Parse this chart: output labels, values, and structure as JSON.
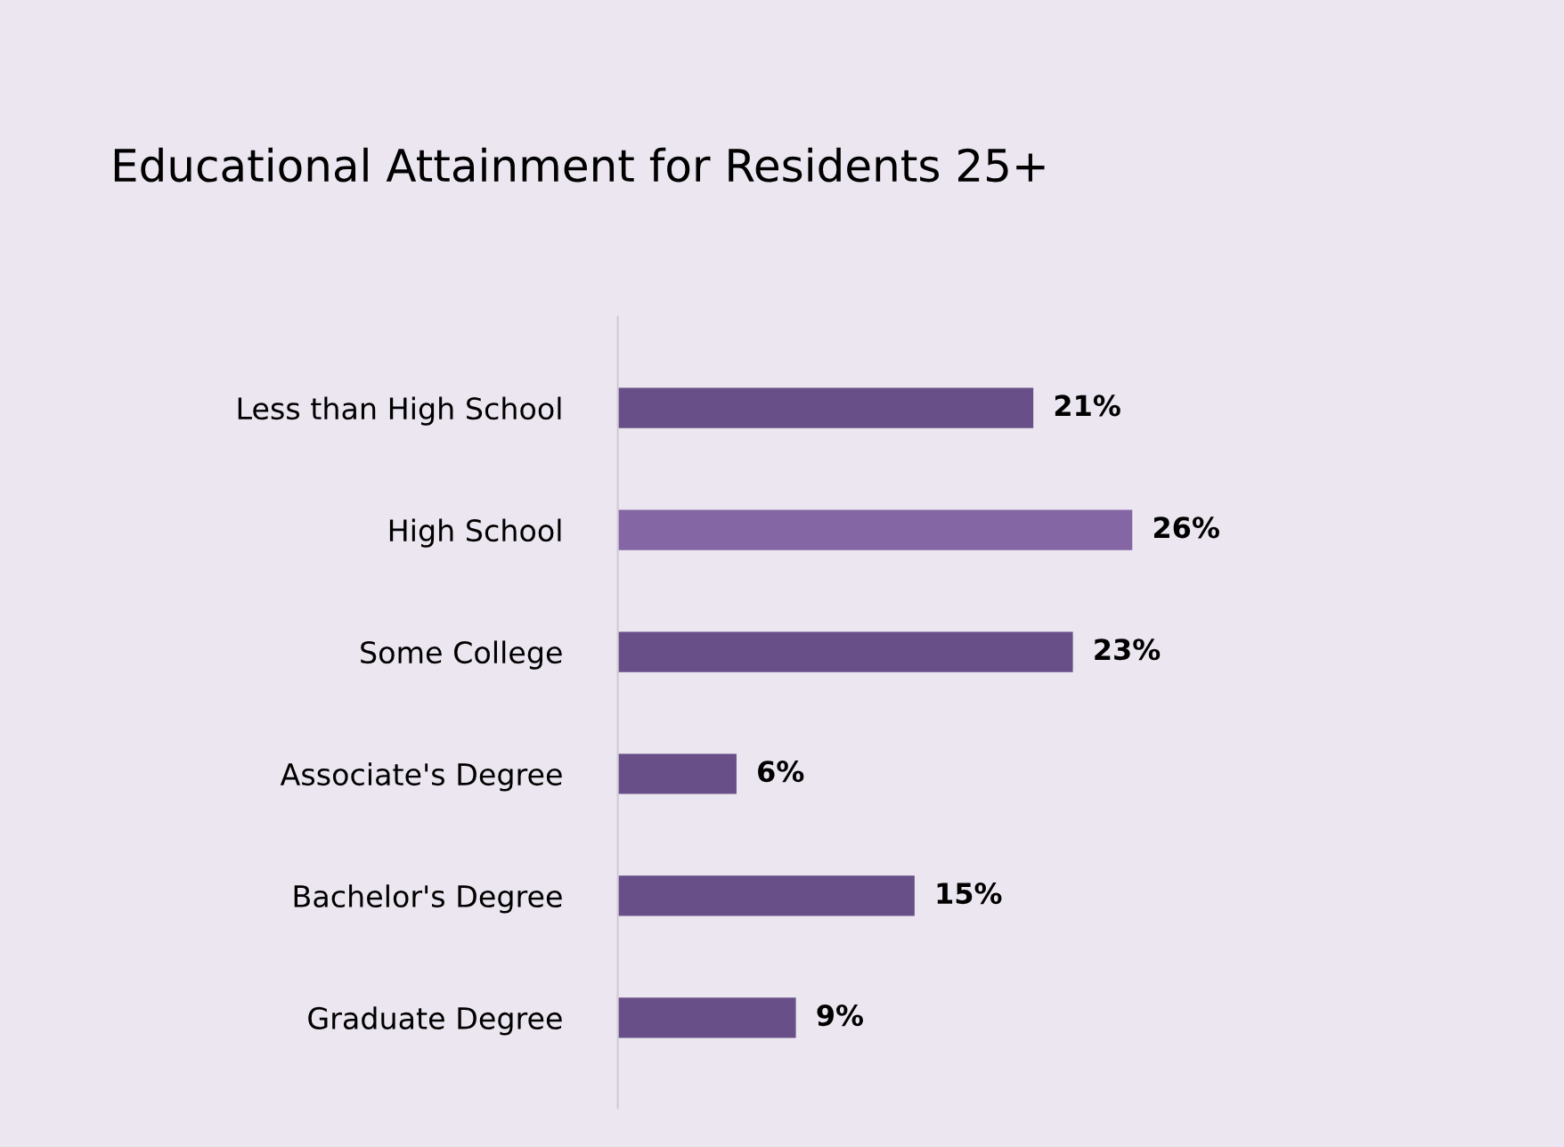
{
  "chart_data": {
    "type": "bar",
    "orientation": "horizontal",
    "title": "Educational Attainment for Residents 25+",
    "categories": [
      "Less than High School",
      "High School",
      "Some College",
      "Associate's Degree",
      "Bachelor's Degree",
      "Graduate Degree"
    ],
    "values": [
      21,
      26,
      23,
      6,
      15,
      9
    ],
    "colors": [
      "#684f87",
      "#8466a5",
      "#684f87",
      "#684f87",
      "#684f87",
      "#684f87"
    ],
    "value_labels": [
      "21%",
      "26%",
      "23%",
      "6%",
      "15%",
      "9%"
    ],
    "grid": false,
    "legend": false
  }
}
